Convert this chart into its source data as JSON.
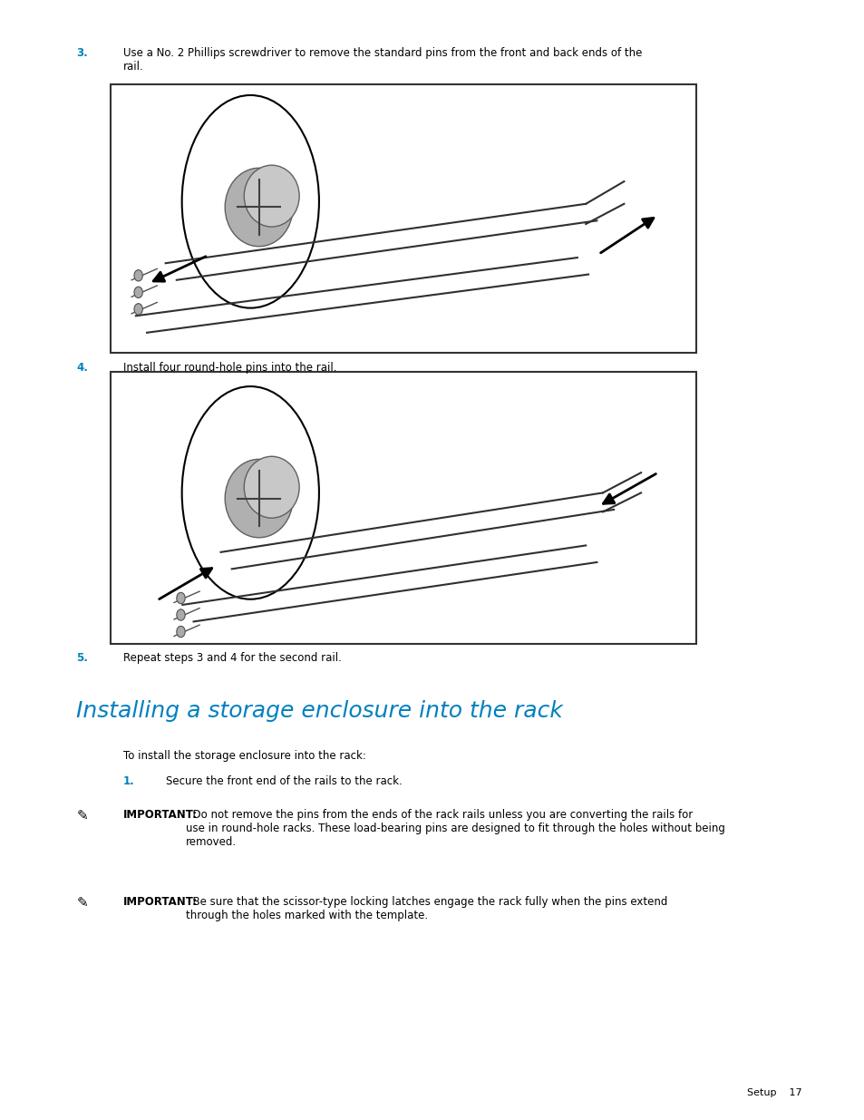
{
  "background_color": "#ffffff",
  "page_width": 9.54,
  "page_height": 12.35,
  "text_color": "#000000",
  "blue_color": "#0080c0",
  "step3_number": "3.",
  "step3_text": "Use a No. 2 Phillips screwdriver to remove the standard pins from the front and back ends of the\nrail.",
  "step4_number": "4.",
  "step4_text": "Install four round-hole pins into the rail.",
  "step5_number": "5.",
  "step5_text": "Repeat steps 3 and 4 for the second rail.",
  "section_title": "Installing a storage enclosure into the rack",
  "intro_text": "To install the storage enclosure into the rack:",
  "step1_number": "1.",
  "step1_text": "Secure the front end of the rails to the rack.",
  "important1_bold": "IMPORTANT:",
  "important1_text": "  Do not remove the pins from the ends of the rack rails unless you are converting the rails for\nuse in round-hole racks. These load-bearing pins are designed to fit through the holes without being\nremoved.",
  "important2_bold": "IMPORTANT:",
  "important2_text": "  Be sure that the scissor-type locking latches engage the rack fully when the pins extend\nthrough the holes marked with the template.",
  "footer_text": "Setup    17",
  "font_size_body": 8.5,
  "font_size_step_num": 8.5,
  "font_size_section": 18,
  "font_size_footer": 8
}
